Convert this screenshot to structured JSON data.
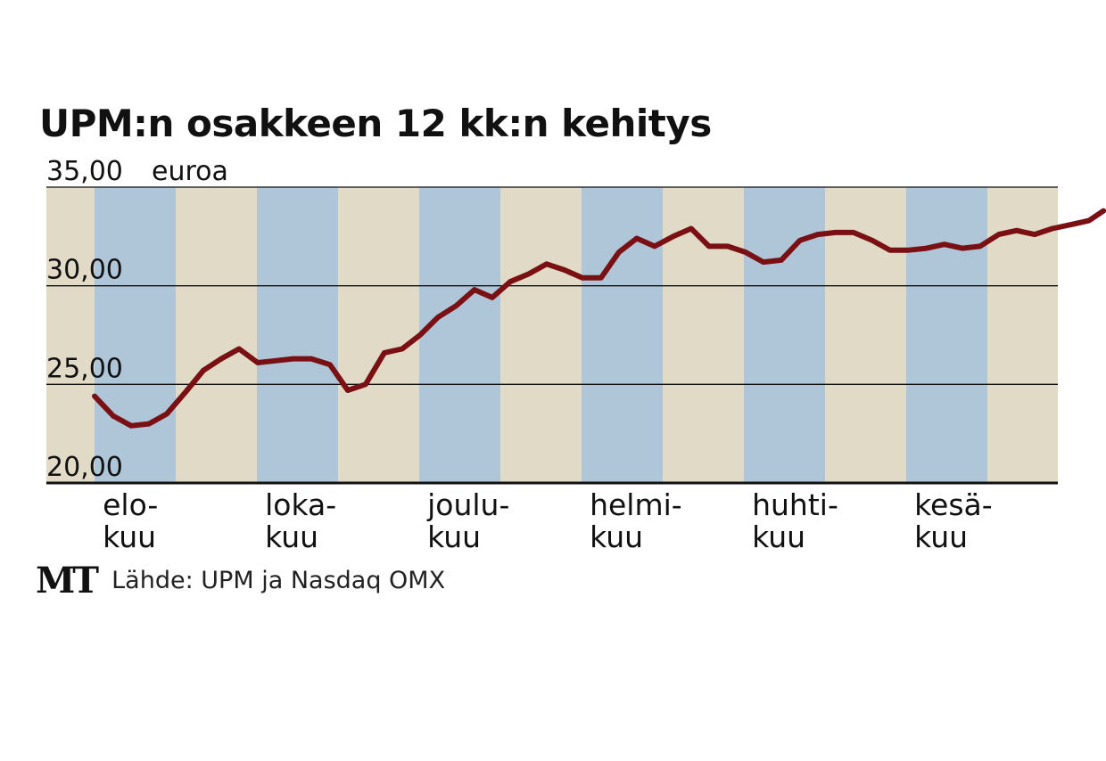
{
  "chart_data": {
    "type": "line",
    "title": "UPM:n osakkeen 12 kk:n kehitys",
    "unit_label": "euroa",
    "source": "Lähde: UPM ja Nasdaq OMX",
    "logo": "MT",
    "ylim": [
      20,
      35
    ],
    "y_ticks": [
      "35,00",
      "30,00",
      "25,00",
      "20,00"
    ],
    "y_tick_values": [
      35,
      30,
      25,
      20
    ],
    "x_labels": [
      {
        "line1": "elo-",
        "line2": "kuu"
      },
      {
        "line1": "loka-",
        "line2": "kuu"
      },
      {
        "line1": "joulu-",
        "line2": "kuu"
      },
      {
        "line1": "helmi-",
        "line2": "kuu"
      },
      {
        "line1": "huhti-",
        "line2": "kuu"
      },
      {
        "line1": "kesä-",
        "line2": "kuu"
      }
    ],
    "months": 12.4,
    "band_order": [
      "beige",
      "blue",
      "beige",
      "blue",
      "beige",
      "blue",
      "beige",
      "blue",
      "beige",
      "blue",
      "beige",
      "blue",
      "beige"
    ],
    "line_color": "#7a1014",
    "band_colors": {
      "beige": "#e0dac6",
      "blue": "#aec6d7"
    },
    "grid": true,
    "series": [
      {
        "x": [
          0,
          0.23,
          0.45,
          0.67,
          0.89,
          1.12,
          1.34,
          1.56,
          1.78,
          2.01,
          2.23,
          2.45,
          2.67,
          2.9,
          3.12,
          3.34,
          3.57,
          3.79,
          4.01,
          4.23,
          4.46,
          4.68,
          4.9,
          5.12,
          5.35,
          5.57,
          5.79,
          6.01,
          6.24,
          6.46,
          6.68,
          6.9,
          7.13,
          7.35,
          7.57,
          7.8,
          8.02,
          8.24,
          8.46,
          8.69,
          8.91,
          9.13,
          9.35,
          9.58,
          9.8,
          10.02,
          10.25,
          10.47,
          10.69,
          10.91,
          11.14,
          11.36,
          11.58,
          11.8,
          12.03,
          12.25,
          12.43
        ],
        "values": [
          24.4,
          23.4,
          22.9,
          23.0,
          23.5,
          24.6,
          25.7,
          26.3,
          26.8,
          26.1,
          26.2,
          26.3,
          26.3,
          26.0,
          24.7,
          25.0,
          26.6,
          26.8,
          27.5,
          28.4,
          29.0,
          29.8,
          29.4,
          30.2,
          30.6,
          31.1,
          30.8,
          30.4,
          30.4,
          31.7,
          32.4,
          32.0,
          32.5,
          32.9,
          32.0,
          32.0,
          31.7,
          31.2,
          31.3,
          32.3,
          32.6,
          32.7,
          32.7,
          32.3,
          31.8,
          31.8,
          31.9,
          32.1,
          31.9,
          32.0,
          32.6,
          32.8,
          32.6,
          32.9,
          33.1,
          33.3,
          33.8
        ]
      }
    ]
  }
}
